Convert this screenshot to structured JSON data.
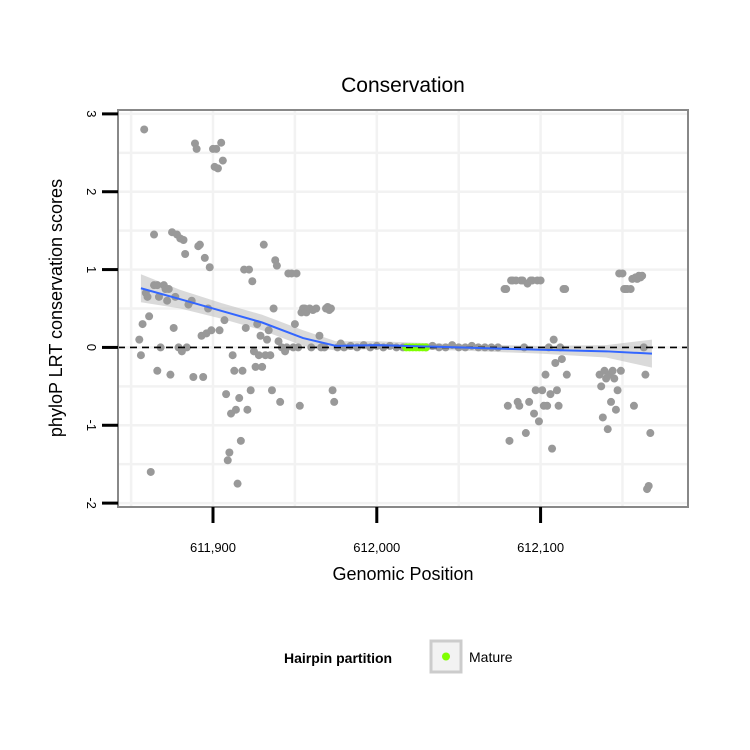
{
  "chart_data": {
    "type": "scatter",
    "title": "Conservation",
    "xlabel": "Genomic Position",
    "ylabel": "phyloP LRT conservation scores",
    "xlim": [
      611842,
      612190
    ],
    "ylim": [
      -2.05,
      3.05
    ],
    "x_ticks": [
      {
        "value": 611900,
        "label": "611,900"
      },
      {
        "value": 612000,
        "label": "612,000"
      },
      {
        "value": 612100,
        "label": "612,100"
      }
    ],
    "y_ticks": [
      {
        "value": -2,
        "label": "-2"
      },
      {
        "value": -1,
        "label": "-1"
      },
      {
        "value": 0,
        "label": "0"
      },
      {
        "value": 1,
        "label": "1"
      },
      {
        "value": 2,
        "label": "2"
      },
      {
        "value": 3,
        "label": "3"
      }
    ],
    "grid": true,
    "reference_line": {
      "y": 0,
      "style": "dashed"
    },
    "colors": {
      "points": "#999999",
      "mature": "#80ff00",
      "smooth": "#3366ff",
      "ribbon": "#bbbbbb",
      "panel_border": "#888888",
      "grid": "#f2f2f2"
    },
    "points": [
      [
        611858,
        2.8
      ],
      [
        611855,
        0.1
      ],
      [
        611856,
        -0.1
      ],
      [
        611857,
        0.3
      ],
      [
        611859,
        0.7
      ],
      [
        611860,
        0.65
      ],
      [
        611861,
        0.4
      ],
      [
        611862,
        -1.6
      ],
      [
        611864,
        1.45
      ],
      [
        611864,
        0.8
      ],
      [
        611866,
        0.8
      ],
      [
        611867,
        0.65
      ],
      [
        611866,
        -0.3
      ],
      [
        611868,
        0.0
      ],
      [
        611870,
        0.8
      ],
      [
        611871,
        0.75
      ],
      [
        611872,
        0.6
      ],
      [
        611873,
        0.75
      ],
      [
        611874,
        -0.35
      ],
      [
        611875,
        1.48
      ],
      [
        611876,
        0.25
      ],
      [
        611877,
        0.65
      ],
      [
        611878,
        1.45
      ],
      [
        611879,
        0.0
      ],
      [
        611880,
        1.4
      ],
      [
        611881,
        -0.05
      ],
      [
        611882,
        1.38
      ],
      [
        611883,
        1.2
      ],
      [
        611884,
        0.0
      ],
      [
        611885,
        0.55
      ],
      [
        611887,
        0.6
      ],
      [
        611888,
        -0.38
      ],
      [
        611889,
        2.62
      ],
      [
        611890,
        2.55
      ],
      [
        611891,
        1.3
      ],
      [
        611892,
        1.32
      ],
      [
        611893,
        0.15
      ],
      [
        611894,
        -0.38
      ],
      [
        611895,
        1.15
      ],
      [
        611896,
        0.18
      ],
      [
        611897,
        0.5
      ],
      [
        611898,
        1.03
      ],
      [
        611899,
        0.22
      ],
      [
        611900,
        2.55
      ],
      [
        611901,
        2.32
      ],
      [
        611902,
        2.55
      ],
      [
        611903,
        2.3
      ],
      [
        611904,
        0.22
      ],
      [
        611905,
        2.63
      ],
      [
        611906,
        2.4
      ],
      [
        611907,
        0.35
      ],
      [
        611908,
        -0.6
      ],
      [
        611909,
        -1.45
      ],
      [
        611910,
        -1.35
      ],
      [
        611911,
        -0.85
      ],
      [
        611912,
        -0.1
      ],
      [
        611913,
        -0.3
      ],
      [
        611914,
        -0.8
      ],
      [
        611915,
        -1.75
      ],
      [
        611916,
        -0.65
      ],
      [
        611917,
        -1.2
      ],
      [
        611918,
        -0.3
      ],
      [
        611919,
        1.0
      ],
      [
        611920,
        0.25
      ],
      [
        611921,
        -0.8
      ],
      [
        611922,
        1.0
      ],
      [
        611923,
        -0.55
      ],
      [
        611924,
        0.85
      ],
      [
        611925,
        -0.05
      ],
      [
        611926,
        -0.25
      ],
      [
        611927,
        0.3
      ],
      [
        611928,
        -0.1
      ],
      [
        611929,
        0.15
      ],
      [
        611930,
        -0.25
      ],
      [
        611931,
        1.32
      ],
      [
        611932,
        -0.1
      ],
      [
        611933,
        0.1
      ],
      [
        611934,
        0.22
      ],
      [
        611935,
        -0.1
      ],
      [
        611936,
        -0.55
      ],
      [
        611937,
        0.5
      ],
      [
        611938,
        1.12
      ],
      [
        611939,
        1.05
      ],
      [
        611940,
        0.08
      ],
      [
        611941,
        -0.7
      ],
      [
        611942,
        0.0
      ],
      [
        611944,
        -0.05
      ],
      [
        611945,
        0.0
      ],
      [
        611946,
        0.95
      ],
      [
        611948,
        0.95
      ],
      [
        611949,
        0.0
      ],
      [
        611950,
        0.3
      ],
      [
        611951,
        0.95
      ],
      [
        611952,
        0.0
      ],
      [
        611953,
        -0.75
      ],
      [
        611954,
        0.45
      ],
      [
        611955,
        0.5
      ],
      [
        611956,
        0.5
      ],
      [
        611957,
        0.45
      ],
      [
        611959,
        0.5
      ],
      [
        611960,
        0.0
      ],
      [
        611961,
        0.48
      ],
      [
        611963,
        0.5
      ],
      [
        611965,
        0.15
      ],
      [
        611966,
        0.0
      ],
      [
        611968,
        0.0
      ],
      [
        611969,
        0.5
      ],
      [
        611970,
        0.52
      ],
      [
        611971,
        0.48
      ],
      [
        611972,
        0.5
      ],
      [
        611973,
        -0.55
      ],
      [
        611974,
        -0.7
      ],
      [
        611976,
        0.0
      ],
      [
        611978,
        0.05
      ],
      [
        611980,
        0.0
      ],
      [
        611984,
        0.02
      ],
      [
        611988,
        0.0
      ],
      [
        611992,
        0.03
      ],
      [
        611996,
        0.0
      ],
      [
        612000,
        0.02
      ],
      [
        612004,
        0.0
      ],
      [
        612008,
        0.02
      ],
      [
        612012,
        0.0
      ],
      [
        612016,
        0.0
      ],
      [
        612030,
        0.0
      ],
      [
        612034,
        0.02
      ],
      [
        612038,
        0.0
      ],
      [
        612042,
        0.0
      ],
      [
        612046,
        0.03
      ],
      [
        612050,
        0.0
      ],
      [
        612054,
        0.0
      ],
      [
        612058,
        0.02
      ],
      [
        612062,
        0.0
      ],
      [
        612066,
        0.0
      ],
      [
        612070,
        0.0
      ],
      [
        612074,
        0.0
      ],
      [
        612078,
        0.75
      ],
      [
        612079,
        0.75
      ],
      [
        612080,
        -0.75
      ],
      [
        612081,
        -1.2
      ],
      [
        612082,
        0.86
      ],
      [
        612083,
        0.86
      ],
      [
        612085,
        0.86
      ],
      [
        612086,
        -0.7
      ],
      [
        612087,
        -0.75
      ],
      [
        612088,
        0.86
      ],
      [
        612089,
        0.86
      ],
      [
        612090,
        0.0
      ],
      [
        612091,
        -1.1
      ],
      [
        612092,
        0.82
      ],
      [
        612093,
        -0.7
      ],
      [
        612094,
        0.86
      ],
      [
        612095,
        0.86
      ],
      [
        612096,
        -0.85
      ],
      [
        612097,
        -0.55
      ],
      [
        612098,
        0.86
      ],
      [
        612099,
        -0.95
      ],
      [
        612100,
        0.86
      ],
      [
        612101,
        -0.55
      ],
      [
        612102,
        -0.75
      ],
      [
        612103,
        -0.35
      ],
      [
        612104,
        -0.75
      ],
      [
        612105,
        0.0
      ],
      [
        612106,
        -0.6
      ],
      [
        612107,
        -1.3
      ],
      [
        612108,
        0.1
      ],
      [
        612109,
        -0.2
      ],
      [
        612110,
        -0.55
      ],
      [
        612111,
        -0.75
      ],
      [
        612112,
        0.0
      ],
      [
        612113,
        -0.15
      ],
      [
        612114,
        0.75
      ],
      [
        612115,
        0.75
      ],
      [
        612116,
        -0.35
      ],
      [
        612136,
        -0.35
      ],
      [
        612137,
        -0.5
      ],
      [
        612138,
        -0.9
      ],
      [
        612139,
        -0.3
      ],
      [
        612140,
        -0.4
      ],
      [
        612141,
        -1.05
      ],
      [
        612142,
        -0.35
      ],
      [
        612143,
        -0.7
      ],
      [
        612144,
        -0.3
      ],
      [
        612145,
        -0.4
      ],
      [
        612146,
        -0.8
      ],
      [
        612147,
        -0.55
      ],
      [
        612148,
        0.95
      ],
      [
        612149,
        -0.3
      ],
      [
        612150,
        0.95
      ],
      [
        612151,
        0.75
      ],
      [
        612152,
        0.75
      ],
      [
        612153,
        0.75
      ],
      [
        612155,
        0.75
      ],
      [
        612156,
        0.88
      ],
      [
        612157,
        -0.75
      ],
      [
        612158,
        0.9
      ],
      [
        612159,
        0.88
      ],
      [
        612160,
        0.92
      ],
      [
        612161,
        0.9
      ],
      [
        612162,
        0.92
      ],
      [
        612163,
        0.0
      ],
      [
        612164,
        -0.35
      ],
      [
        612165,
        -1.82
      ],
      [
        612166,
        -1.78
      ],
      [
        612167,
        -1.1
      ]
    ],
    "mature_x_range": [
      612018,
      612030
    ],
    "smooth_line": [
      [
        611856,
        0.76
      ],
      [
        611880,
        0.62
      ],
      [
        611905,
        0.47
      ],
      [
        611930,
        0.32
      ],
      [
        611955,
        0.12
      ],
      [
        611975,
        0.02
      ],
      [
        612000,
        0.03
      ],
      [
        612050,
        0.0
      ],
      [
        612100,
        -0.03
      ],
      [
        612140,
        -0.05
      ],
      [
        612168,
        -0.08
      ]
    ],
    "ribbon_half_width": [
      [
        611856,
        0.18
      ],
      [
        611880,
        0.12
      ],
      [
        611905,
        0.1
      ],
      [
        611930,
        0.1
      ],
      [
        611955,
        0.1
      ],
      [
        611975,
        0.06
      ],
      [
        612000,
        0.05
      ],
      [
        612050,
        0.04
      ],
      [
        612100,
        0.05
      ],
      [
        612140,
        0.08
      ],
      [
        612168,
        0.18
      ]
    ],
    "legend": {
      "title": "Hairpin partition",
      "items": [
        {
          "label": "Mature",
          "color": "#80ff00"
        }
      ],
      "placement": "bottom"
    }
  }
}
